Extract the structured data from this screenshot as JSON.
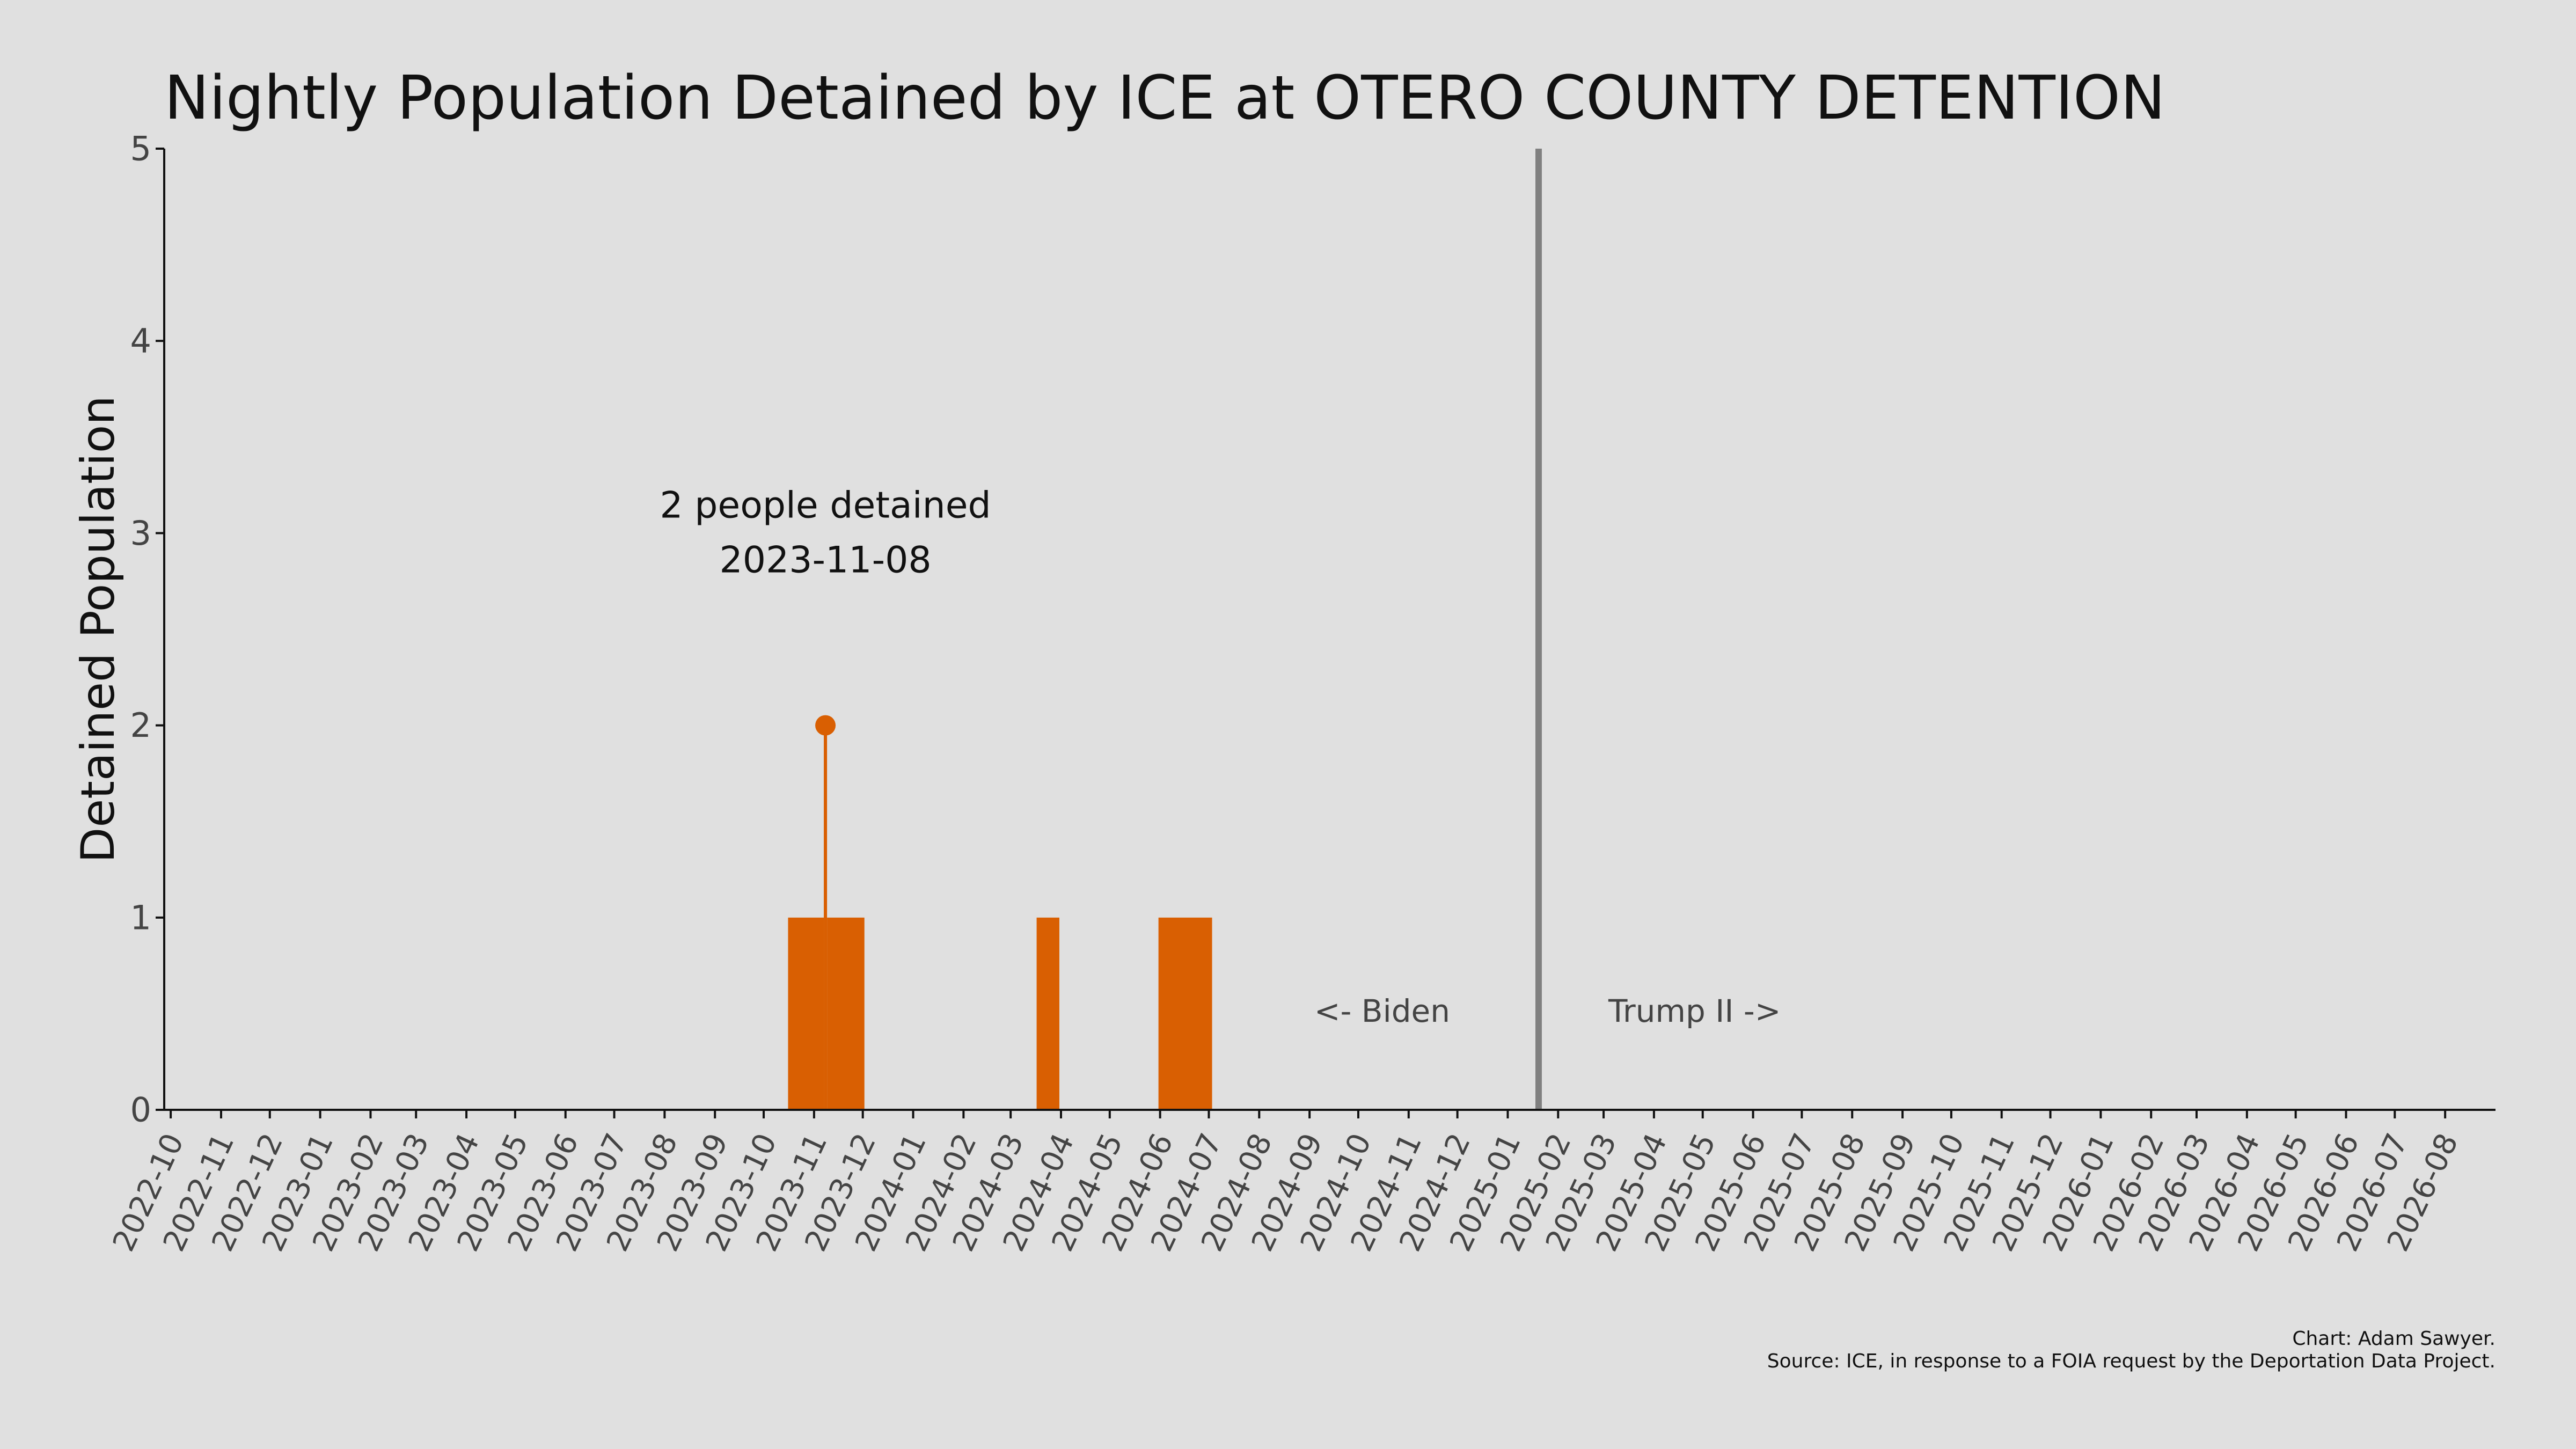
{
  "title": "Nightly Population Detained by ICE at OTERO COUNTY DETENTION",
  "credits": {
    "author": "Chart: Adam Sawyer.",
    "source": "Source: ICE, in response to a FOIA request by the Deportation Data Project."
  },
  "colors": {
    "background": "#e0e0e0",
    "bars": "#d95f02",
    "divider": "#808080",
    "axis": "#111111"
  },
  "chart_data": {
    "type": "bar",
    "title": "Nightly Population Detained by ICE at OTERO COUNTY DETENTION",
    "ylabel": "Detained Population",
    "xlabel": "",
    "ylim": [
      0,
      5
    ],
    "xlim": [
      "2022-09-27",
      "2026-09-01"
    ],
    "yticks": [
      0,
      1,
      2,
      3,
      4,
      5
    ],
    "xticks": [
      "2022-10",
      "2022-11",
      "2022-12",
      "2023-01",
      "2023-02",
      "2023-03",
      "2023-04",
      "2023-05",
      "2023-06",
      "2023-07",
      "2023-08",
      "2023-09",
      "2023-10",
      "2023-11",
      "2023-12",
      "2024-01",
      "2024-02",
      "2024-03",
      "2024-04",
      "2024-05",
      "2024-06",
      "2024-07",
      "2024-08",
      "2024-09",
      "2024-10",
      "2024-11",
      "2024-12",
      "2025-01",
      "2025-02",
      "2025-03",
      "2025-04",
      "2025-05",
      "2025-06",
      "2025-07",
      "2025-08",
      "2025-09",
      "2025-10",
      "2025-11",
      "2025-12",
      "2026-01",
      "2026-02",
      "2026-03",
      "2026-04",
      "2026-05",
      "2026-06",
      "2026-07",
      "2026-08"
    ],
    "grid": false,
    "series": [
      {
        "values": [
          {
            "start": "2023-10-16",
            "end": "2023-11-07",
            "value": 1
          },
          {
            "start": "2023-11-07",
            "end": "2023-11-09",
            "value": 2
          },
          {
            "start": "2023-11-09",
            "end": "2023-12-02",
            "value": 1
          },
          {
            "start": "2024-03-17",
            "end": "2024-03-31",
            "value": 1
          },
          {
            "start": "2024-05-31",
            "end": "2024-07-03",
            "value": 1
          }
        ]
      }
    ],
    "peak": {
      "date": "2023-11-08",
      "value": 2
    },
    "annotation": {
      "line1": "2 people detained",
      "line2": "2023-11-08"
    },
    "divider": {
      "date": "2025-01-20",
      "left_label": "<- Biden",
      "right_label": "Trump II ->"
    }
  }
}
